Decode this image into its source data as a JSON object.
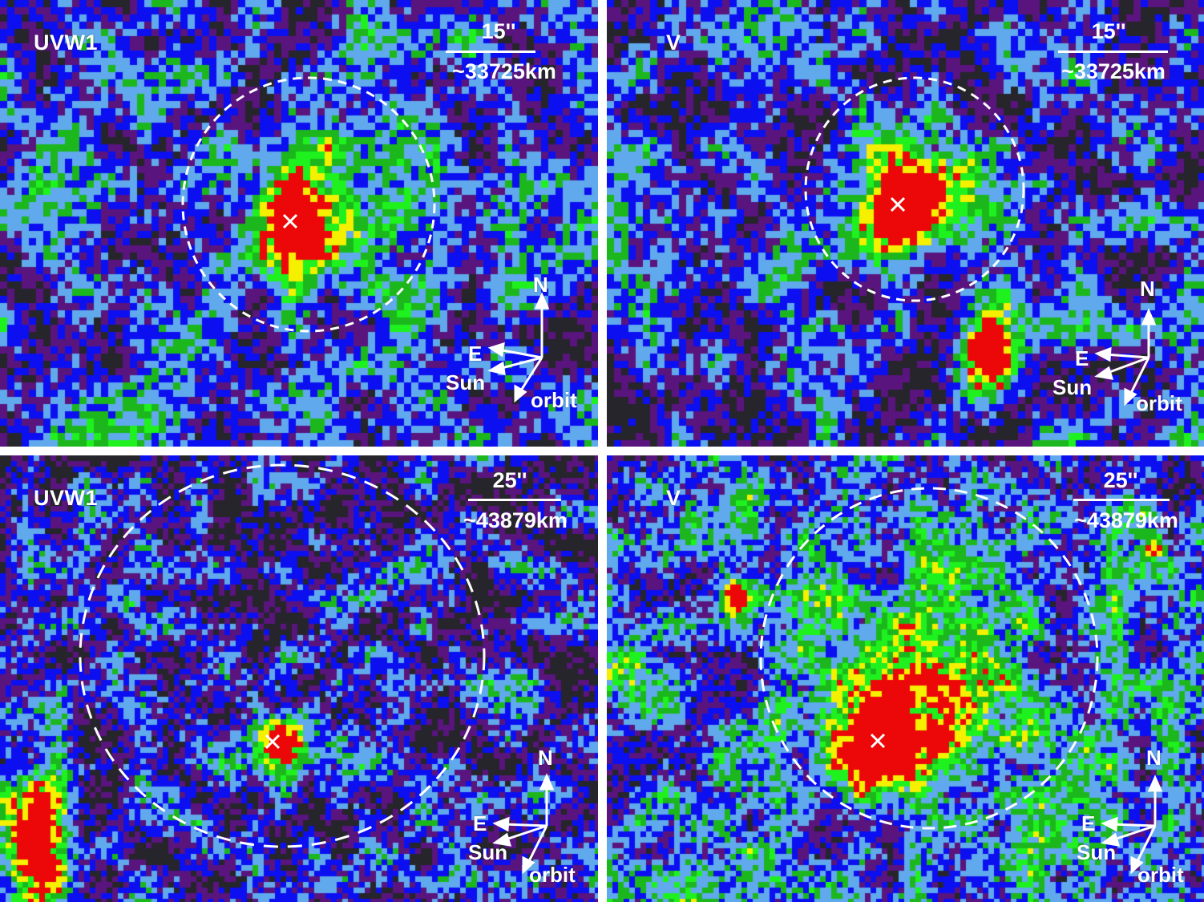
{
  "colors": {
    "background_level": "#25252b",
    "level_1": "#5a147e",
    "level_2": "#0c0ff0",
    "level_3": "#5fa9ec",
    "level_4": "#1cb71c",
    "level_5": "#1ef11e",
    "level_6": "#f4f000",
    "level_7": "#ec0808",
    "overlay": "#ffffff"
  },
  "panels": [
    {
      "filter": "UVW1",
      "scale_arcsec": "15''",
      "scale_km": "~33725km",
      "compass": {
        "north": "N",
        "east": "E",
        "sun": "Sun",
        "orbit": "orbit"
      },
      "nucleus_marker": "×"
    },
    {
      "filter": "V",
      "scale_arcsec": "15''",
      "scale_km": "~33725km",
      "compass": {
        "north": "N",
        "east": "E",
        "sun": "Sun",
        "orbit": "orbit"
      },
      "nucleus_marker": "×"
    },
    {
      "filter": "UVW1",
      "scale_arcsec": "25''",
      "scale_km": "~43879km",
      "compass": {
        "north": "N",
        "east": "E",
        "sun": "Sun",
        "orbit": "orbit"
      },
      "nucleus_marker": "×"
    },
    {
      "filter": "V",
      "scale_arcsec": "25''",
      "scale_km": "~43879km",
      "compass": {
        "north": "N",
        "east": "E",
        "sun": "Sun",
        "orbit": "orbit"
      },
      "nucleus_marker": "×"
    }
  ]
}
